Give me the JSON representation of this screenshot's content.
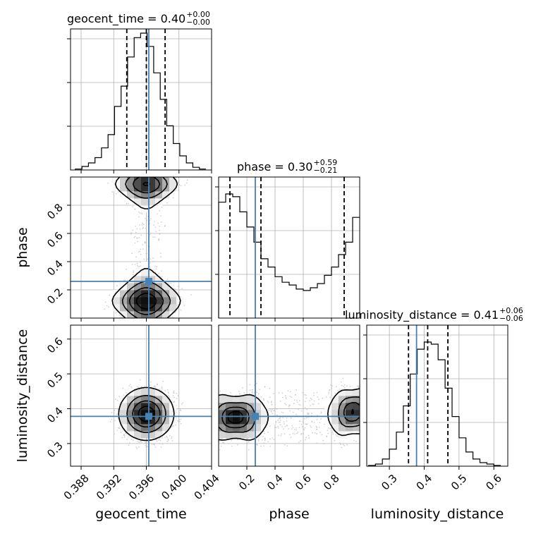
{
  "chart_data": {
    "type": "corner",
    "params": [
      "geocent_time",
      "phase",
      "luminosity_distance"
    ],
    "truth": {
      "geocent_time": 0.3963,
      "phase": 0.26,
      "luminosity_distance": 0.378
    },
    "ranges": {
      "geocent_time": [
        0.3867,
        0.404
      ],
      "phase": [
        0.0,
        1.0
      ],
      "luminosity_distance": [
        0.235,
        0.64
      ]
    },
    "ticks": {
      "geocent_time": [
        0.388,
        0.392,
        0.396,
        0.4,
        0.404
      ],
      "phase": [
        0.2,
        0.4,
        0.6,
        0.8
      ],
      "luminosity_distance": [
        0.3,
        0.4,
        0.5,
        0.6
      ]
    },
    "tick_labels": {
      "geocent_time": [
        "0.388",
        "0.392",
        "0.396",
        "0.400",
        "0.404"
      ],
      "phase": [
        "0.2",
        "0.4",
        "0.6",
        "0.8"
      ],
      "luminosity_distance": [
        "0.3",
        "0.4",
        "0.5",
        "0.6"
      ]
    },
    "titles": {
      "geocent_time": {
        "main": "geocent_time = 0.40",
        "plus": "+0.00",
        "minus": "−0.00"
      },
      "phase": {
        "main": "phase = 0.30",
        "plus": "+0.59",
        "minus": "−0.21"
      },
      "luminosity_distance": {
        "main": "luminosity_distance = 0.41",
        "plus": "+0.06",
        "minus": "−0.06"
      }
    },
    "quantiles": {
      "geocent_time": [
        0.3936,
        0.396,
        0.3983
      ],
      "phase": [
        0.08,
        0.3,
        0.89
      ],
      "luminosity_distance": [
        0.355,
        0.41,
        0.468
      ]
    },
    "histograms": {
      "geocent_time": {
        "edges": [
          0.3873,
          0.3881,
          0.3889,
          0.3897,
          0.3905,
          0.3913,
          0.3921,
          0.3929,
          0.3937,
          0.3945,
          0.3953,
          0.3961,
          0.3969,
          0.3977,
          0.3985,
          0.3993,
          0.4001,
          0.4009,
          0.4017,
          0.4025,
          0.4033
        ],
        "counts": [
          1,
          4,
          8,
          14,
          25,
          40,
          72,
          95,
          128,
          150,
          155,
          140,
          110,
          80,
          50,
          30,
          16,
          8,
          3,
          1
        ]
      },
      "phase": {
        "edges": [
          0.0,
          0.05,
          0.1,
          0.15,
          0.2,
          0.25,
          0.3,
          0.35,
          0.4,
          0.45,
          0.5,
          0.55,
          0.6,
          0.65,
          0.7,
          0.75,
          0.8,
          0.85,
          0.9,
          0.95,
          1.0
        ],
        "counts": [
          84,
          90,
          88,
          77,
          66,
          55,
          43,
          37,
          30,
          26,
          24,
          21,
          20,
          22,
          25,
          31,
          37,
          46,
          55,
          73
        ]
      },
      "luminosity_distance": {
        "edges": [
          0.24,
          0.26,
          0.28,
          0.3,
          0.32,
          0.34,
          0.36,
          0.38,
          0.4,
          0.42,
          0.44,
          0.46,
          0.48,
          0.5,
          0.52,
          0.54,
          0.56,
          0.58,
          0.6,
          0.62
        ],
        "counts": [
          1,
          3,
          10,
          24,
          48,
          85,
          130,
          165,
          175,
          172,
          150,
          110,
          70,
          40,
          20,
          10,
          5,
          3,
          1
        ]
      }
    },
    "scatter_color": "#bdbdbd",
    "truth_color": "#4682b4",
    "grid": true
  }
}
